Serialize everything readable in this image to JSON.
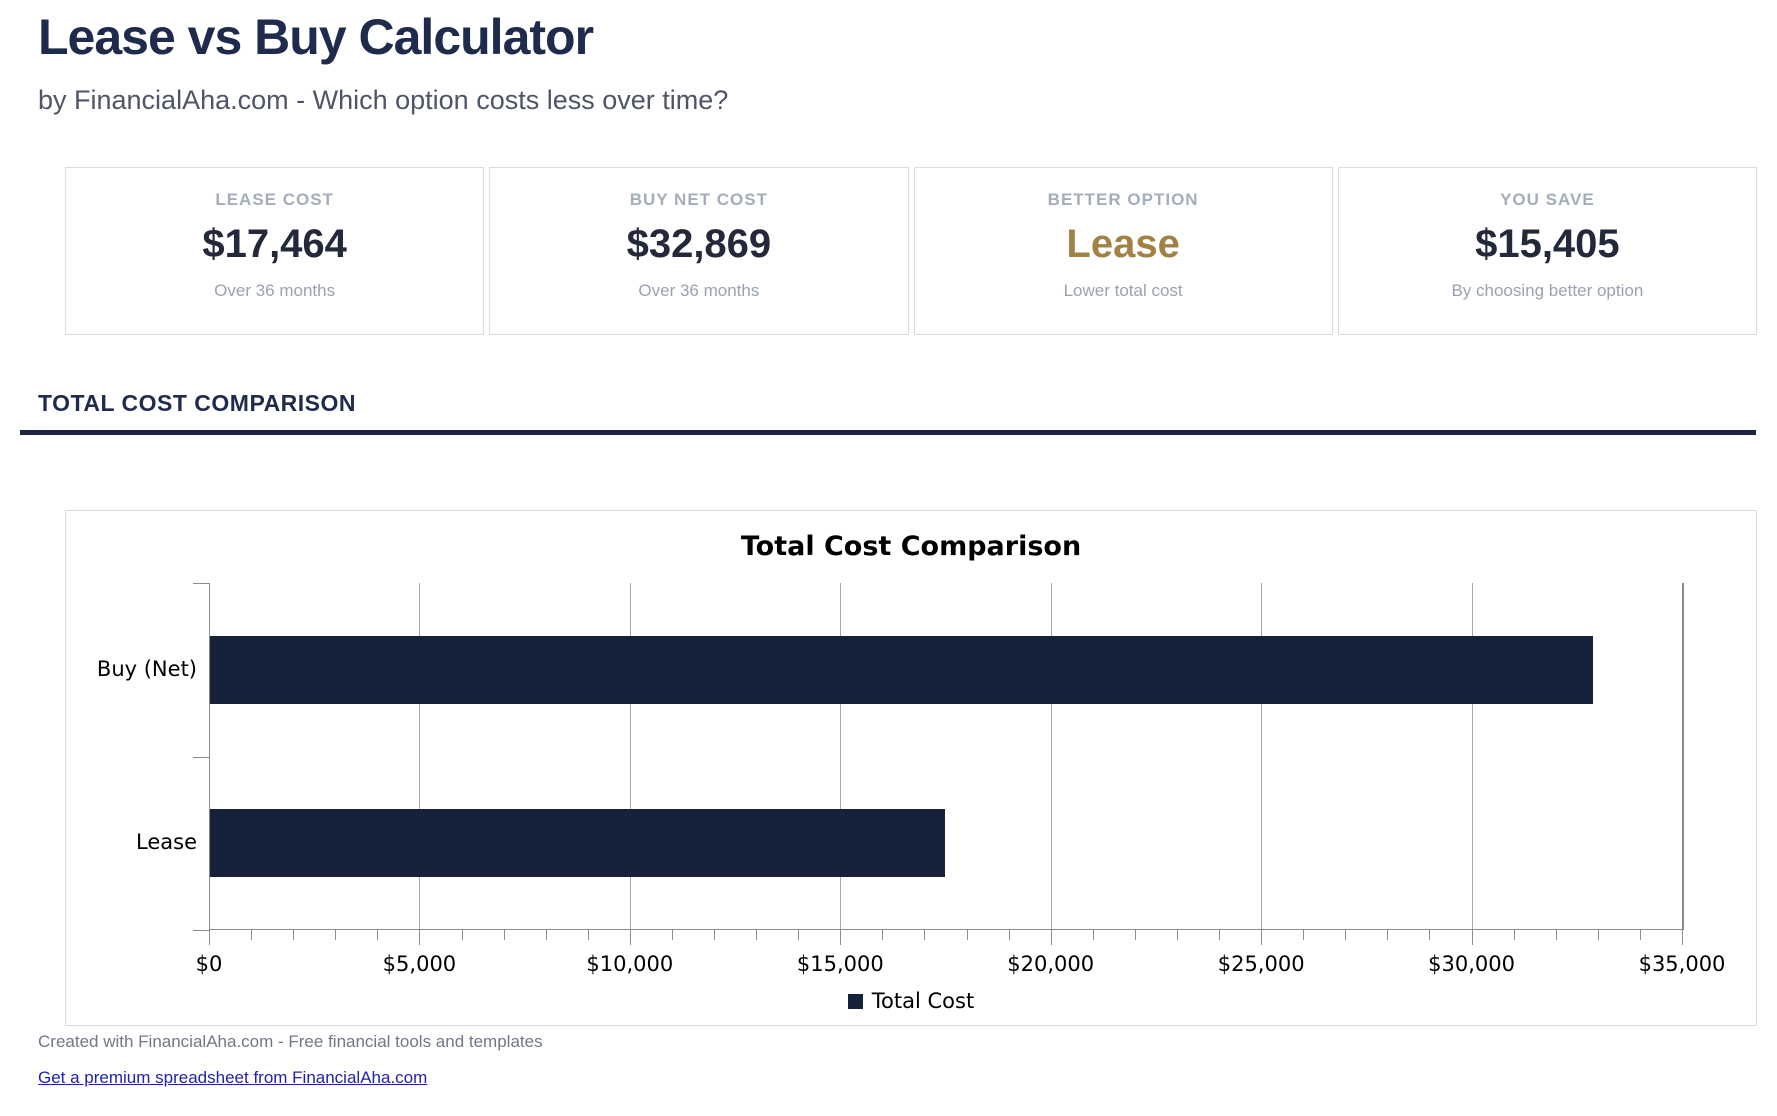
{
  "page": {
    "title": "Lease vs Buy Calculator",
    "subtitle": "by FinancialAha.com - Which option costs less over time?"
  },
  "summary_cards": [
    {
      "label": "LEASE COST",
      "value": "$17,464",
      "sub": "Over 36 months",
      "value_color": "#23283a"
    },
    {
      "label": "BUY NET COST",
      "value": "$32,869",
      "sub": "Over 36 months",
      "value_color": "#23283a"
    },
    {
      "label": "BETTER OPTION",
      "value": "Lease",
      "sub": "Lower total cost",
      "value_color": "#a28145"
    },
    {
      "label": "YOU SAVE",
      "value": "$15,405",
      "sub": "By choosing better option",
      "value_color": "#23283a"
    }
  ],
  "section": {
    "title": "TOTAL COST COMPARISON"
  },
  "chart_data": {
    "type": "bar",
    "orientation": "horizontal",
    "title": "Total Cost Comparison",
    "categories": [
      "Buy (Net)",
      "Lease"
    ],
    "values": [
      32869,
      17464
    ],
    "series_name": "Total Cost",
    "xlim": [
      0,
      35000
    ],
    "x_major_tick": 5000,
    "x_minor_tick": 1000,
    "x_tick_labels": [
      "$0",
      "$5,000",
      "$10,000",
      "$15,000",
      "$20,000",
      "$25,000",
      "$30,000",
      "$35,000"
    ],
    "bar_color": "#16223a",
    "grid": true,
    "legend": {
      "label": "Total Cost",
      "position": "bottom"
    }
  },
  "footer": {
    "credit": "Created with FinancialAha.com - Free financial tools and templates",
    "link": "Get a premium spreadsheet from FinancialAha.com"
  },
  "colors": {
    "heading_navy": "#1e2b4c",
    "accent_gold": "#a28145",
    "rule_navy": "#1b2440",
    "link_blue": "#2222b2"
  }
}
